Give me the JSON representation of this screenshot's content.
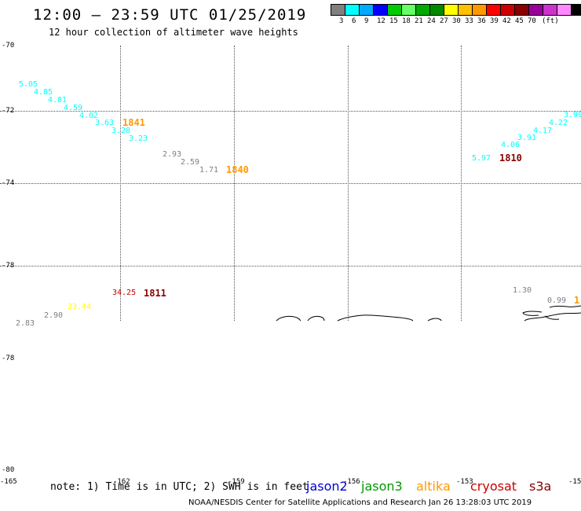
{
  "header": {
    "title": "12:00 – 23:59 UTC 01/25/2019",
    "subtitle": "12 hour collection of altimeter wave heights"
  },
  "legend": {
    "unit": "(ft)",
    "colors": [
      "#808080",
      "#00ffff",
      "#00aaff",
      "#0000ff",
      "#00cc00",
      "#66ff66",
      "#00aa00",
      "#008800",
      "#ffff00",
      "#ffc000",
      "#ff9900",
      "#ff0000",
      "#cc0000",
      "#880000",
      "#990099",
      "#cc33cc",
      "#ff88ff",
      "#000000"
    ],
    "labels": [
      "3",
      "6",
      "9",
      "12",
      "15",
      "18",
      "21",
      "24",
      "27",
      "30",
      "33",
      "36",
      "39",
      "42",
      "45",
      "70"
    ]
  },
  "grid": {
    "lat_labels": [
      "-70",
      "-72",
      "-74",
      "-78",
      "-78",
      "-80"
    ],
    "lon_labels": [
      "-165",
      "-162",
      "-159",
      "-156",
      "-153",
      "-15"
    ]
  },
  "observations": [
    {
      "v": "5.05",
      "color": "#00ffff"
    },
    {
      "v": "4.85",
      "color": "#00ffff"
    },
    {
      "v": "4.81",
      "color": "#00ffff"
    },
    {
      "v": "4.59",
      "color": "#00ffff"
    },
    {
      "v": "4.02",
      "color": "#00ffff"
    },
    {
      "v": "3.63",
      "color": "#00ffff"
    },
    {
      "v": "3.28",
      "color": "#00ffff"
    },
    {
      "v": "3.23",
      "color": "#00ffff"
    },
    {
      "v": "2.93",
      "color": "#808080"
    },
    {
      "v": "2.59",
      "color": "#808080"
    },
    {
      "v": "1.71",
      "color": "#808080"
    },
    {
      "v": "5.97",
      "color": "#00ffff"
    },
    {
      "v": "4.06",
      "color": "#00ffff"
    },
    {
      "v": "3.91",
      "color": "#00ffff"
    },
    {
      "v": "4.17",
      "color": "#00ffff"
    },
    {
      "v": "4.22",
      "color": "#00ffff"
    },
    {
      "v": "3.99",
      "color": "#00ffff"
    },
    {
      "v": "34.25",
      "color": "#cc0000"
    },
    {
      "v": "23.44",
      "color": "#ffff00"
    },
    {
      "v": "2.90",
      "color": "#808080"
    },
    {
      "v": "2.83",
      "color": "#808080"
    },
    {
      "v": "1.30",
      "color": "#808080"
    },
    {
      "v": "0.99",
      "color": "#808080"
    }
  ],
  "times": [
    {
      "v": "1841",
      "color": "#ff9900"
    },
    {
      "v": "1840",
      "color": "#ff9900"
    },
    {
      "v": "1810",
      "color": "#880000"
    },
    {
      "v": "1811",
      "color": "#880000"
    },
    {
      "v": "1",
      "color": "#ff9900"
    }
  ],
  "note": "note:  1) Time is in UTC;  2) SWH is in feet",
  "satellites": [
    {
      "name": "jason2",
      "color": "#0000cc"
    },
    {
      "name": "jason3",
      "color": "#009900"
    },
    {
      "name": "altika",
      "color": "#ff9900"
    },
    {
      "name": "cryosat",
      "color": "#cc0000"
    },
    {
      "name": "s3a",
      "color": "#880000"
    }
  ],
  "footer": "NOAA/NESDIS Center for Satellite Applications and Research    Jan 26 13:28:03 UTC 2019"
}
